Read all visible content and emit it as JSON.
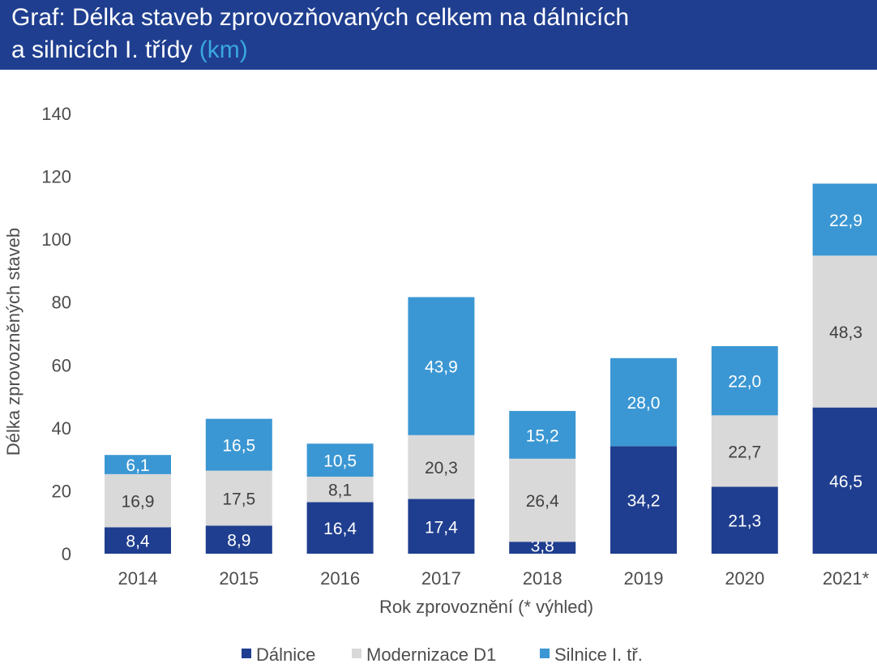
{
  "header": {
    "title": "Graf: Délka staveb zprovozňovaných celkem na dálnicích\na silnicích I. třídy",
    "unit": "(km)"
  },
  "chart_data": {
    "type": "bar",
    "stacked": true,
    "title": "Graf: Délka staveb zprovozňovaných celkem na dálnicích a silnicích I. třídy (km)",
    "xlabel": "Rok zprovoznění (* výhled)",
    "ylabel": "Délka zprovozněných staveb",
    "ylim": [
      0,
      140
    ],
    "yticks": [
      0,
      20,
      40,
      60,
      80,
      100,
      120,
      140
    ],
    "grid": false,
    "legend": "bottom",
    "categories": [
      "2014",
      "2015",
      "2016",
      "2017",
      "2018",
      "2019",
      "2020",
      "2021*"
    ],
    "series": [
      {
        "name": "Dálnice",
        "color": "#1f3e8f",
        "label_color": "#ffffff",
        "values": [
          8.4,
          8.9,
          16.4,
          17.4,
          3.8,
          34.2,
          21.3,
          46.5
        ],
        "labels": [
          "8,4",
          "8,9",
          "16,4",
          "17,4",
          "3,8",
          "34,2",
          "21,3",
          "46,5"
        ]
      },
      {
        "name": "Modernizace D1",
        "color": "#d9d9d9",
        "label_color": "#404040",
        "values": [
          16.9,
          17.5,
          8.1,
          20.3,
          26.4,
          null,
          22.7,
          48.3
        ],
        "labels": [
          "16,9",
          "17,5",
          "8,1",
          "20,3",
          "26,4",
          "",
          "22,7",
          "48,3"
        ]
      },
      {
        "name": "Silnice I. tř.",
        "color": "#3b97d3",
        "label_color": "#ffffff",
        "values": [
          6.1,
          16.5,
          10.5,
          43.9,
          15.2,
          28.0,
          22.0,
          22.9
        ],
        "labels": [
          "6,1",
          "16,5",
          "10,5",
          "43,9",
          "15,2",
          "28,0",
          "22,0",
          "22,9"
        ]
      }
    ]
  }
}
